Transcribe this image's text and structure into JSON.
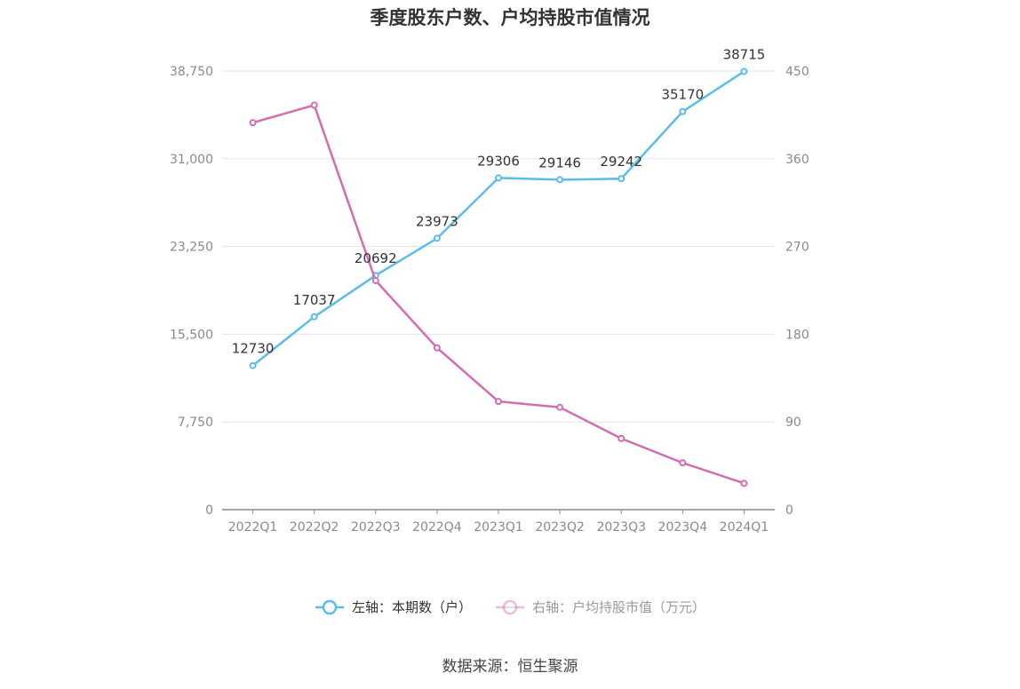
{
  "title": "季度股东户数、户均持股市值情况",
  "source": "数据来源：恒生聚源",
  "colors": {
    "left_series": "#5bbcec",
    "right_series": "#d36db0",
    "grid": "#dfe3ea",
    "axis": "#8a8a8a"
  },
  "legend": [
    {
      "label": "左轴：本期数（户）",
      "state": "active"
    },
    {
      "label": "右轴：户均持股市值（万元）",
      "state": "inactive"
    }
  ],
  "chart_data": {
    "type": "line",
    "categories": [
      "2022Q1",
      "2022Q2",
      "2022Q3",
      "2022Q4",
      "2023Q1",
      "2023Q2",
      "2023Q3",
      "2023Q4",
      "2024Q1"
    ],
    "left_axis": {
      "ylim": [
        0,
        38750
      ],
      "ticks": [
        0,
        7750,
        15500,
        23250,
        31000,
        38750
      ],
      "tick_labels": [
        "0",
        "7,750",
        "15,500",
        "23,250",
        "31,000",
        "38,750"
      ]
    },
    "right_axis": {
      "ylim": [
        0,
        450
      ],
      "ticks": [
        0,
        90,
        180,
        270,
        360,
        450
      ],
      "tick_labels": [
        "0",
        "90",
        "180",
        "270",
        "360",
        "450"
      ]
    },
    "series": [
      {
        "name": "左轴：本期数（户）",
        "axis": "left",
        "values": [
          12730,
          17037,
          20692,
          23973,
          29306,
          29146,
          29242,
          35170,
          38715
        ],
        "labels": [
          "12730",
          "17037",
          "20692",
          "23973",
          "29306",
          "29146",
          "29242",
          "35170",
          "38715"
        ],
        "show_labels": true
      },
      {
        "name": "右轴：户均持股市值（万元）",
        "axis": "right",
        "values": [
          397,
          415,
          235,
          166,
          111,
          105,
          73,
          48,
          27
        ],
        "show_labels": false
      }
    ],
    "grid": true,
    "legend_position": "bottom"
  }
}
